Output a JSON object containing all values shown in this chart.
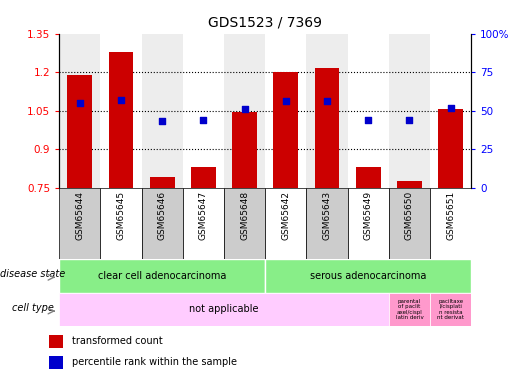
{
  "title": "GDS1523 / 7369",
  "samples": [
    "GSM65644",
    "GSM65645",
    "GSM65646",
    "GSM65647",
    "GSM65648",
    "GSM65642",
    "GSM65643",
    "GSM65649",
    "GSM65650",
    "GSM65651"
  ],
  "transformed_count": [
    1.19,
    1.28,
    0.79,
    0.83,
    1.045,
    1.2,
    1.215,
    0.83,
    0.775,
    1.055
  ],
  "percentile_rank": [
    55,
    57,
    43,
    44,
    51,
    56,
    56,
    44,
    44,
    52
  ],
  "ylim_left": [
    0.75,
    1.35
  ],
  "ylim_right": [
    0,
    100
  ],
  "yticks_left": [
    0.75,
    0.9,
    1.05,
    1.2,
    1.35
  ],
  "yticks_right": [
    0,
    25,
    50,
    75,
    100
  ],
  "ytick_labels_right": [
    "0",
    "25",
    "50",
    "75",
    "100%"
  ],
  "bar_color": "#cc0000",
  "dot_color": "#0000cc",
  "grid_lines": [
    1.2,
    1.05,
    0.9
  ],
  "col_bg_odd": "#cccccc",
  "col_bg_even": "#ffffff",
  "disease_state_color": "#88ee88",
  "cell_type_main_color": "#ffccff",
  "cell_type_extra_color": "#ff99cc",
  "label_color": "#444444"
}
